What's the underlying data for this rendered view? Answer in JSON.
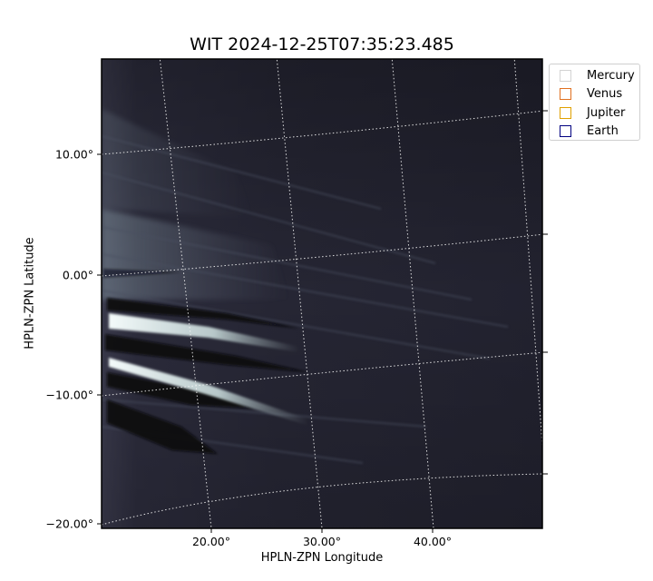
{
  "chart_data": {
    "type": "image",
    "title": "WIT 2024-12-25T07:35:23.485",
    "xlabel": "HPLN-ZPN Longitude",
    "ylabel": "HPLN-ZPN Latitude",
    "x_ticks": [
      {
        "value": 20,
        "label": "20.00°"
      },
      {
        "value": 30,
        "label": "30.00°"
      },
      {
        "value": 40,
        "label": "40.00°"
      }
    ],
    "y_ticks": [
      {
        "value": 10,
        "label": "10.00°"
      },
      {
        "value": 0,
        "label": "0.00°"
      },
      {
        "value": -10,
        "label": "−10.00°"
      },
      {
        "value": -20,
        "label": "−20.00°"
      }
    ],
    "grid": "dotted coordinate grid",
    "colormap": "bone",
    "legend": {
      "position": "outside-right",
      "entries": [
        {
          "name": "Mercury",
          "color": "#d3d3d3"
        },
        {
          "name": "Venus",
          "color": "#e07020"
        },
        {
          "name": "Jupiter",
          "color": "#e0a000"
        },
        {
          "name": "Earth",
          "color": "#000080"
        }
      ]
    }
  }
}
